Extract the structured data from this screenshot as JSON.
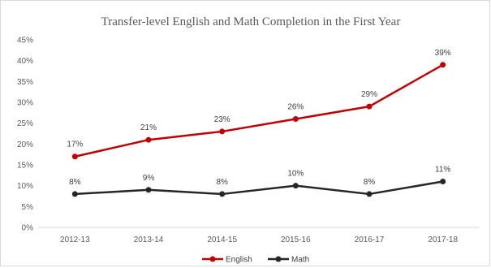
{
  "chart_data": {
    "type": "line",
    "title": "Transfer-level English and Math Completion in the First Year",
    "categories": [
      "2012-13",
      "2013-14",
      "2014-15",
      "2015-16",
      "2016-17",
      "2017-18"
    ],
    "series": [
      {
        "name": "English",
        "color": "#c00000",
        "values": [
          17,
          21,
          23,
          26,
          29,
          39
        ],
        "labels": [
          "17%",
          "21%",
          "23%",
          "26%",
          "29%",
          "39%"
        ]
      },
      {
        "name": "Math",
        "color": "#262626",
        "values": [
          8,
          9,
          8,
          10,
          8,
          11
        ],
        "labels": [
          "8%",
          "9%",
          "8%",
          "10%",
          "8%",
          "11%"
        ]
      }
    ],
    "yticks": [
      "0%",
      "5%",
      "10%",
      "15%",
      "20%",
      "25%",
      "30%",
      "35%",
      "40%",
      "45%"
    ],
    "ylim": [
      0,
      45
    ],
    "grid": false,
    "legend": "bottom-center"
  }
}
